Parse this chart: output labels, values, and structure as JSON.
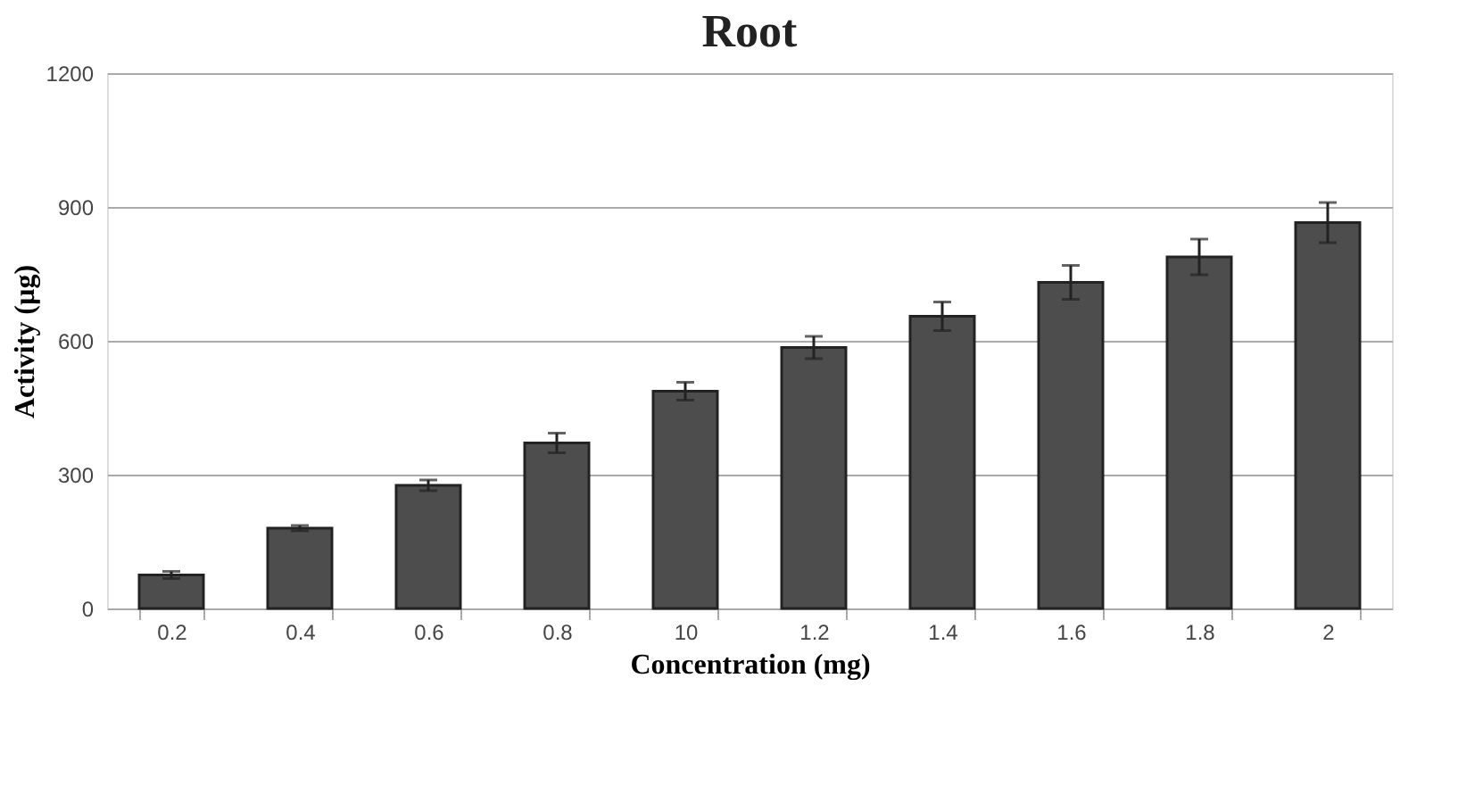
{
  "chart_data": {
    "type": "bar",
    "title": "Root",
    "xlabel": "Concentration  (mg)",
    "ylabel": "Activity  (µg)",
    "categories": [
      "0.2",
      "0.4",
      "0.6",
      "0.8",
      "10",
      "1.2",
      "1.4",
      "1.6",
      "1.8",
      "2"
    ],
    "values": [
      75,
      180,
      276,
      371,
      487,
      585,
      655,
      731,
      788,
      865
    ],
    "errors": [
      8,
      6,
      12,
      22,
      20,
      25,
      32,
      38,
      40,
      45
    ],
    "color": "#4d4d4d",
    "ylim": [
      0,
      1200
    ],
    "yticks": [
      0,
      300,
      600,
      900,
      1200
    ],
    "grid": "y"
  }
}
